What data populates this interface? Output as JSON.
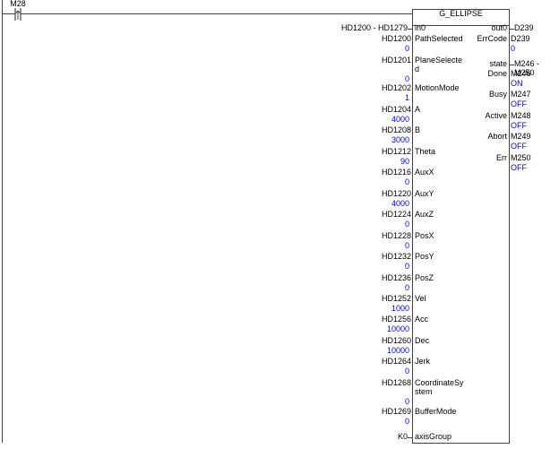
{
  "colors": {
    "line": "#424242",
    "value_text": "#0000ff",
    "label_text": "#000000",
    "background": "#ffffff"
  },
  "contact": {
    "device": "M28",
    "type": "rising-edge-contact"
  },
  "block": {
    "title": "G_ELLIPSE",
    "inputs": [
      {
        "name": "in0",
        "operand": "HD1200 - HD1279"
      },
      {
        "name": "PathSelected",
        "operand": "HD1200",
        "value": "0"
      },
      {
        "name": "PlaneSelecte\nd",
        "operand": "HD1201",
        "value": "0"
      },
      {
        "name": "MotionMode",
        "operand": "HD1202",
        "value": "1"
      },
      {
        "name": "A",
        "operand": "HD1204",
        "value": "4000"
      },
      {
        "name": "B",
        "operand": "HD1208",
        "value": "3000"
      },
      {
        "name": "Theta",
        "operand": "HD1212",
        "value": "90"
      },
      {
        "name": "AuxX",
        "operand": "HD1216",
        "value": "0"
      },
      {
        "name": "AuxY",
        "operand": "HD1220",
        "value": "4000"
      },
      {
        "name": "AuxZ",
        "operand": "HD1224",
        "value": "0"
      },
      {
        "name": "PosX",
        "operand": "HD1228",
        "value": "0"
      },
      {
        "name": "PosY",
        "operand": "HD1232",
        "value": "0"
      },
      {
        "name": "PosZ",
        "operand": "HD1236",
        "value": "0"
      },
      {
        "name": "Vel",
        "operand": "HD1252",
        "value": "1000"
      },
      {
        "name": "Acc",
        "operand": "HD1256",
        "value": "10000"
      },
      {
        "name": "Dec",
        "operand": "HD1260",
        "value": "10000"
      },
      {
        "name": "Jerk",
        "operand": "HD1264",
        "value": "0"
      },
      {
        "name": "CoordinateSy\nstem",
        "operand": "HD1268",
        "value": "0"
      },
      {
        "name": "BufferMode",
        "operand": "HD1269",
        "value": "0"
      },
      {
        "name": "axisGroup",
        "operand": "K0"
      }
    ],
    "outputs": [
      {
        "name": "out0",
        "operand": "D239"
      },
      {
        "name": "ErrCode",
        "operand": "D239",
        "value": "0"
      },
      {
        "name": "state",
        "operand": "M246 - M250"
      },
      {
        "name": "Done",
        "operand": "M246",
        "value": "ON"
      },
      {
        "name": "Busy",
        "operand": "M247",
        "value": "OFF"
      },
      {
        "name": "Active",
        "operand": "M248",
        "value": "OFF"
      },
      {
        "name": "Abort",
        "operand": "M249",
        "value": "OFF"
      },
      {
        "name": "Err",
        "operand": "M250",
        "value": "OFF"
      }
    ]
  }
}
